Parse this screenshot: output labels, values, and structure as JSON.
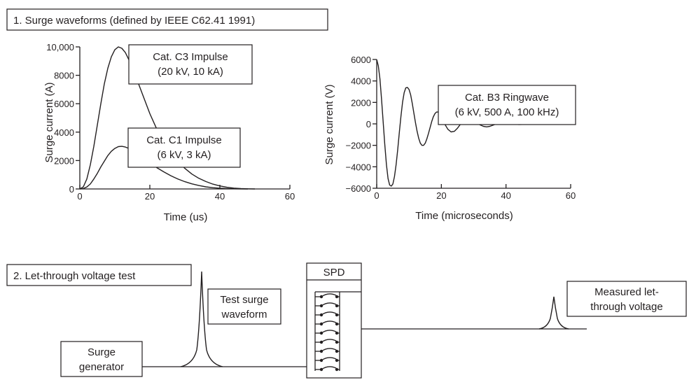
{
  "sections": {
    "surge_header": "1. Surge waveforms (defined by IEEE C62.41 1991)",
    "letthrough_header": "2. Let-through voltage test"
  },
  "chart_data": [
    {
      "type": "line",
      "xlabel": "Time (us)",
      "ylabel": "Surge current (A)",
      "xlim": [
        0,
        60
      ],
      "ylim": [
        0,
        10000
      ],
      "x_ticks": [
        "0",
        "20",
        "40",
        "60"
      ],
      "y_ticks": [
        "0",
        "2000",
        "4000",
        "6000",
        "8000",
        "10,000"
      ],
      "annotations": [
        {
          "line1": "Cat. C3 Impulse",
          "line2": "(20 kV, 10 kA)"
        },
        {
          "line1": "Cat. C1 Impulse",
          "line2": "(6 kV, 3 kA)"
        }
      ],
      "series": [
        {
          "x": [
            0,
            1,
            2,
            3,
            4,
            5,
            6,
            7,
            8,
            9,
            10,
            11,
            12,
            13,
            14,
            16,
            18,
            20,
            22,
            24,
            26,
            28,
            30,
            32,
            34,
            36,
            38,
            40,
            42,
            44,
            46,
            48,
            50
          ],
          "values": [
            0,
            150,
            700,
            1700,
            3000,
            4500,
            6000,
            7400,
            8500,
            9300,
            9800,
            10000,
            9900,
            9600,
            9100,
            7900,
            6600,
            5300,
            4200,
            3300,
            2550,
            1950,
            1450,
            1050,
            750,
            520,
            340,
            210,
            120,
            60,
            25,
            8,
            0
          ]
        },
        {
          "x": [
            0,
            1,
            2,
            3,
            4,
            5,
            6,
            7,
            8,
            9,
            10,
            11,
            12,
            13,
            14,
            16,
            18,
            20,
            22,
            24,
            26,
            28,
            30,
            32,
            34,
            36,
            38,
            40,
            42,
            44,
            46,
            48
          ],
          "values": [
            0,
            30,
            140,
            350,
            700,
            1100,
            1550,
            1950,
            2350,
            2650,
            2850,
            2980,
            3000,
            2950,
            2850,
            2550,
            2200,
            1850,
            1500,
            1200,
            930,
            700,
            510,
            360,
            240,
            150,
            90,
            50,
            25,
            10,
            3,
            0
          ]
        }
      ]
    },
    {
      "type": "line",
      "xlabel": "Time (microseconds)",
      "ylabel": "Surge current (V)",
      "xlim": [
        0,
        60
      ],
      "ylim": [
        -6000,
        6000
      ],
      "x_ticks": [
        "0",
        "20",
        "40",
        "60"
      ],
      "y_ticks": [
        "−6000",
        "−4000",
        "−2000",
        "0",
        "2000",
        "4000",
        "6000"
      ],
      "annotations": [
        {
          "line1": "Cat. B3 Ringwave",
          "line2": "(6 kV, 500 A, 100 kHz)"
        }
      ],
      "series": [
        {
          "x": [
            0,
            0.5,
            1,
            1.5,
            2,
            2.5,
            3,
            3.5,
            4,
            4.5,
            5,
            5.5,
            6,
            6.5,
            7,
            7.5,
            8,
            8.5,
            9,
            9.5,
            10,
            10.5,
            11,
            11.5,
            12,
            12.5,
            13,
            13.5,
            14,
            14.5,
            15,
            15.5,
            16,
            16.5,
            17,
            17.5,
            18,
            18.5,
            19,
            19.5,
            20,
            21,
            22,
            23,
            24,
            25,
            26,
            27,
            28,
            29,
            30,
            31,
            32,
            33,
            34,
            35,
            36,
            37,
            38,
            39,
            40,
            41,
            42,
            43,
            44,
            45,
            46,
            47,
            48,
            49,
            50,
            51,
            52,
            53,
            54,
            55,
            56,
            57,
            58
          ],
          "values": [
            6000,
            5400,
            4200,
            2300,
            200,
            -1900,
            -3800,
            -5100,
            -5700,
            -5800,
            -5600,
            -4900,
            -3800,
            -2400,
            -800,
            700,
            2000,
            2900,
            3350,
            3400,
            3200,
            2700,
            1900,
            1000,
            100,
            -700,
            -1350,
            -1800,
            -2000,
            -2000,
            -1800,
            -1400,
            -900,
            -350,
            200,
            650,
            950,
            1100,
            1100,
            950,
            700,
            0,
            -500,
            -750,
            -700,
            -400,
            0,
            300,
            450,
            450,
            300,
            100,
            -100,
            -230,
            -280,
            -230,
            -120,
            0,
            80,
            120,
            100,
            50,
            0,
            -40,
            -60,
            -50,
            -20,
            10,
            30,
            40,
            30,
            10,
            -10,
            -20,
            -20,
            -10,
            0,
            10,
            0
          ]
        }
      ]
    }
  ],
  "test_diagram": {
    "generator_label": [
      "Surge",
      "generator"
    ],
    "test_surge_label": [
      "Test surge",
      "waveform"
    ],
    "spd_label": "SPD",
    "measured_label": [
      "Measured let-",
      "through voltage"
    ]
  }
}
